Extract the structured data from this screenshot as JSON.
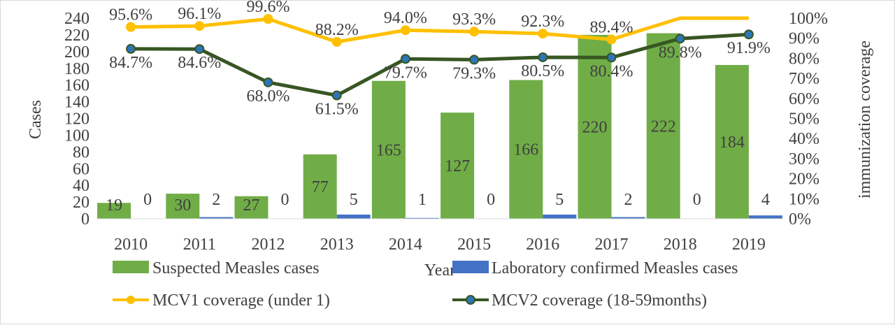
{
  "chart_data": {
    "type": "bar",
    "categories": [
      "2010",
      "2011",
      "2012",
      "2013",
      "2014",
      "2015",
      "2016",
      "2017",
      "2018",
      "2019"
    ],
    "xlabel": "Year",
    "ylabel": "Cases",
    "y2label": "immunization coverage",
    "ylim": [
      0,
      240
    ],
    "y2lim": [
      0,
      100
    ],
    "yticks": [
      0,
      20,
      40,
      60,
      80,
      100,
      120,
      140,
      160,
      180,
      200,
      220,
      240
    ],
    "y2ticks": [
      "0%",
      "10%",
      "20%",
      "30%",
      "40%",
      "50%",
      "60%",
      "70%",
      "80%",
      "90%",
      "100%"
    ],
    "grid": false,
    "legend_position": "bottom",
    "series": [
      {
        "name": "Suspected Measles cases",
        "kind": "bar",
        "axis": "left",
        "color": "#70ad47",
        "values": [
          19,
          30,
          27,
          77,
          165,
          127,
          166,
          220,
          222,
          184
        ],
        "labels": [
          "19",
          "30",
          "27",
          "77",
          "165",
          "127",
          "166",
          "220",
          "222",
          "184"
        ]
      },
      {
        "name": "Laboratory confirmed Measles cases",
        "kind": "bar",
        "axis": "left",
        "color": "#4472c4",
        "values": [
          0,
          2,
          0,
          5,
          1,
          0,
          5,
          2,
          0,
          4
        ],
        "labels": [
          "0",
          "2",
          "0",
          "5",
          "1",
          "0",
          "5",
          "2",
          "0",
          "4"
        ]
      },
      {
        "name": "MCV1 coverage (under 1)",
        "kind": "line",
        "axis": "right",
        "color": "#ffc000",
        "values": [
          95.6,
          96.1,
          99.6,
          88.2,
          94.0,
          93.3,
          92.3,
          89.4,
          100,
          100
        ],
        "labels": [
          "95.6%",
          "96.1%",
          "99.6%",
          "88.2%",
          "94.0%",
          "93.3%",
          "92.3%",
          "89.4%",
          "",
          ""
        ]
      },
      {
        "name": "MCV2 coverage (18-59months)",
        "kind": "line",
        "axis": "right",
        "color": "#375623",
        "marker_color": "#2e75b6",
        "values": [
          84.7,
          84.6,
          68.0,
          61.5,
          79.7,
          79.3,
          80.5,
          80.4,
          89.8,
          91.9
        ],
        "labels": [
          "84.7%",
          "84.6%",
          "68.0%",
          "61.5%",
          "79.7%",
          "79.3%",
          "80.5%",
          "80.4%",
          "89.8%",
          "91.9%"
        ]
      }
    ]
  }
}
